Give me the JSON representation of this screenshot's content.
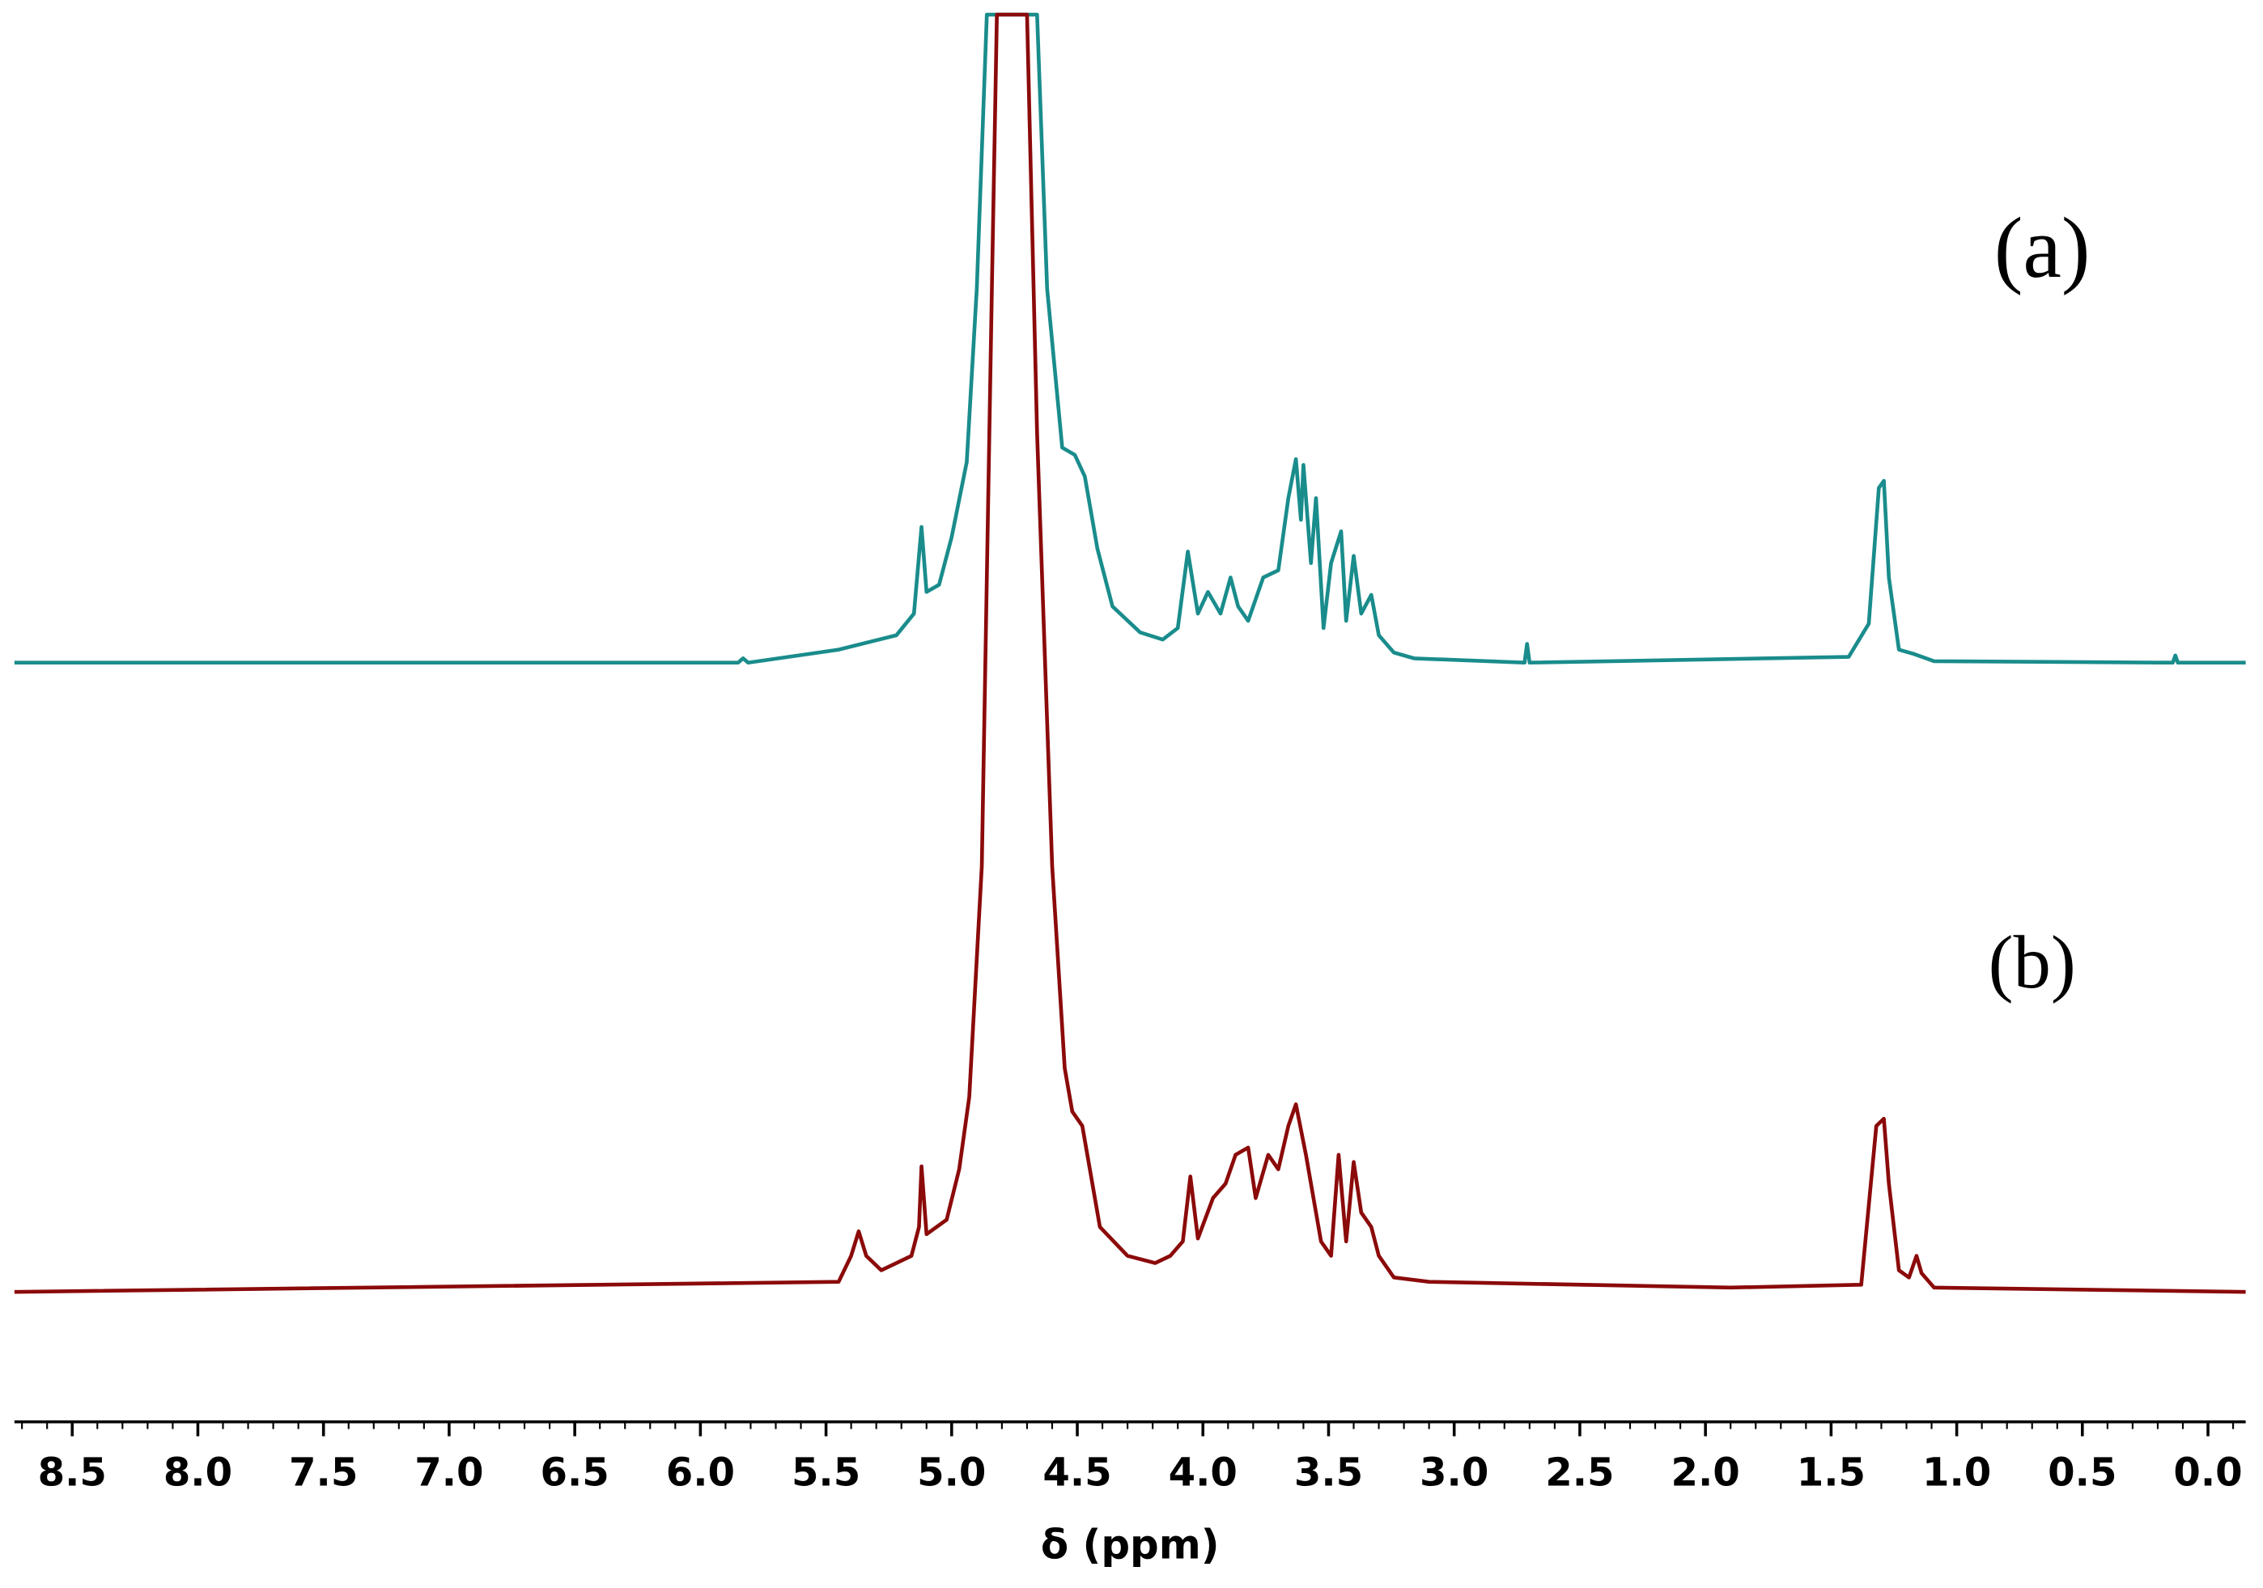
{
  "chart_data": {
    "type": "line",
    "xlabel": "δ (ppm)",
    "xlim": [
      8.73,
      -0.15
    ],
    "ylim": [
      0,
      975
    ],
    "xticks": [
      8.5,
      {
        "value": 8,
        "label": "8.0"
      },
      7.5,
      {
        "value": 7,
        "label": "7.0"
      },
      6.5,
      {
        "value": 6,
        "label": "6.0"
      },
      5.5,
      {
        "value": 5,
        "label": "5.0"
      },
      4.5,
      {
        "value": 4,
        "label": "4.0"
      },
      3.5,
      {
        "value": 3,
        "label": "3.0"
      },
      2.5,
      {
        "value": 2,
        "label": "2.0"
      },
      1.5,
      {
        "value": 1,
        "label": "1.0"
      },
      0.5,
      {
        "value": 0,
        "label": "0.0"
      }
    ],
    "xminorticks": [
      8.7,
      8.6,
      8.4,
      8.3,
      8.2,
      8.1,
      7.9,
      7.8,
      7.7,
      7.6,
      7.4,
      7.3,
      7.2,
      7.1,
      6.9,
      6.8,
      6.7,
      6.6,
      6.4,
      6.3,
      6.2,
      6.1,
      5.9,
      5.8,
      5.7,
      5.6,
      5.4,
      5.3,
      5.2,
      5.1,
      4.9,
      4.8,
      4.7,
      4.6,
      4.4,
      4.3,
      4.2,
      4.1,
      3.9,
      3.8,
      3.7,
      3.6,
      3.4,
      3.3,
      3.2,
      3.1,
      2.9,
      2.8,
      2.7,
      2.6,
      2.4,
      2.3,
      2.2,
      2.1,
      1.9,
      1.8,
      1.7,
      1.6,
      1.4,
      1.3,
      1.2,
      1.1,
      0.9,
      0.8,
      0.7,
      0.6,
      0.4,
      0.3,
      0.2,
      0.1,
      -0.1
    ],
    "series": [
      {
        "name": "(a)",
        "color": "#1a8c8c",
        "x": [
          8.73,
          5.85,
          5.83,
          5.81,
          5.45,
          5.22,
          5.15,
          5.12,
          5.1,
          5.05,
          5.0,
          4.94,
          4.9,
          4.86,
          4.66,
          4.62,
          4.56,
          4.51,
          4.47,
          4.42,
          4.36,
          4.25,
          4.16,
          4.1,
          4.06,
          4.02,
          3.98,
          3.93,
          3.89,
          3.86,
          3.82,
          3.76,
          3.7,
          3.66,
          3.63,
          3.61,
          3.6,
          3.57,
          3.55,
          3.52,
          3.49,
          3.45,
          3.43,
          3.4,
          3.37,
          3.33,
          3.3,
          3.24,
          3.16,
          2.72,
          2.71,
          2.7,
          1.43,
          1.35,
          1.31,
          1.29,
          1.27,
          1.23,
          1.17,
          1.09,
          0.14,
          0.13,
          0.12,
          -0.15
        ],
        "values": [
          526,
          526,
          529,
          526,
          535,
          545,
          560,
          620,
          575,
          580,
          613,
          665,
          785,
          975,
          975,
          785,
          675,
          670,
          655,
          605,
          565,
          547,
          542,
          550,
          603,
          560,
          575,
          560,
          585,
          565,
          555,
          585,
          590,
          640,
          667,
          625,
          663,
          595,
          640,
          550,
          595,
          617,
          555,
          600,
          560,
          573,
          545,
          533,
          529,
          526,
          539,
          526,
          530,
          553,
          647,
          652,
          585,
          535,
          532,
          527,
          526,
          531,
          526,
          526
        ]
      },
      {
        "name": "(b)",
        "color": "#8b0a0a",
        "x": [
          8.73,
          5.45,
          5.4,
          5.37,
          5.34,
          5.28,
          5.16,
          5.13,
          5.12,
          5.1,
          5.02,
          4.97,
          4.93,
          4.88,
          4.84,
          4.82,
          4.7,
          4.66,
          4.6,
          4.55,
          4.52,
          4.48,
          4.41,
          4.3,
          4.19,
          4.13,
          4.08,
          4.05,
          4.02,
          3.96,
          3.91,
          3.87,
          3.82,
          3.79,
          3.74,
          3.7,
          3.66,
          3.63,
          3.59,
          3.53,
          3.49,
          3.46,
          3.43,
          3.4,
          3.37,
          3.33,
          3.3,
          3.24,
          3.1,
          1.9,
          1.38,
          1.32,
          1.29,
          1.27,
          1.23,
          1.19,
          1.16,
          1.14,
          1.09,
          -0.15
        ],
        "values": [
          90,
          97,
          115,
          132,
          115,
          105,
          115,
          135,
          177,
          130,
          140,
          175,
          225,
          385,
          785,
          975,
          975,
          685,
          385,
          245,
          215,
          205,
          135,
          115,
          110,
          115,
          125,
          170,
          127,
          155,
          165,
          185,
          190,
          155,
          185,
          175,
          205,
          220,
          185,
          125,
          115,
          185,
          125,
          180,
          145,
          135,
          115,
          100,
          97,
          93,
          95,
          205,
          210,
          165,
          105,
          100,
          115,
          103,
          93,
          90
        ]
      }
    ]
  }
}
